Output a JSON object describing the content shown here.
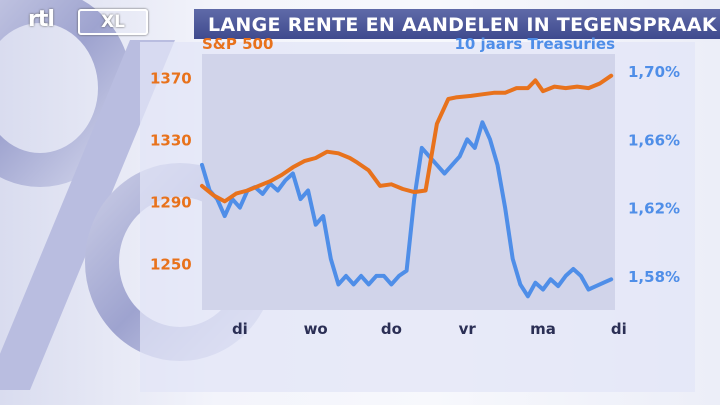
{
  "header": {
    "channel_logo_left": "rtl",
    "channel_logo_right": "XL",
    "title": "LANGE RENTE EN AANDELEN IN TEGENSPRAAK"
  },
  "colors": {
    "sp500": "#e8721c",
    "treasuries": "#4f8ee8",
    "plot_background": "#d1d4ea",
    "title_bar": "#4a5596"
  },
  "chart_data": {
    "type": "line",
    "title": "LANGE RENTE EN AANDELEN IN TEGENSPRAAK",
    "categories": [
      "di",
      "wo",
      "do",
      "vr",
      "ma",
      "di"
    ],
    "grid": false,
    "legend": "top",
    "y_left": {
      "label": "S&P 500",
      "ticks": [
        "1250",
        "1290",
        "1330",
        "1370"
      ],
      "tick_values": [
        1250,
        1290,
        1330,
        1370
      ],
      "range": [
        1220,
        1385
      ]
    },
    "y_right": {
      "label": "10 jaars Treasuries",
      "ticks": [
        "1,58%",
        "1,62%",
        "1,66%",
        "1,70%"
      ],
      "tick_values": [
        1.58,
        1.62,
        1.66,
        1.7
      ],
      "range": [
        1.56,
        1.71
      ]
    },
    "series": [
      {
        "name": "S&P 500",
        "axis": "left",
        "x": [
          0.0,
          0.15,
          0.3,
          0.45,
          0.6,
          0.75,
          0.9,
          1.05,
          1.2,
          1.35,
          1.5,
          1.65,
          1.8,
          1.95,
          2.05,
          2.2,
          2.35,
          2.5,
          2.65,
          2.8,
          2.95,
          3.1,
          3.25,
          3.35,
          3.55,
          3.7,
          3.85,
          4.0,
          4.15,
          4.3,
          4.4,
          4.5,
          4.65,
          4.8,
          4.95,
          5.1,
          5.25,
          5.4
        ],
        "values": [
          1300,
          1294,
          1290,
          1295,
          1297,
          1300,
          1303,
          1307,
          1312,
          1316,
          1318,
          1322,
          1321,
          1318,
          1315,
          1310,
          1300,
          1301,
          1298,
          1296,
          1297,
          1340,
          1356,
          1357,
          1358,
          1359,
          1360,
          1360,
          1363,
          1363,
          1368,
          1361,
          1364,
          1363,
          1364,
          1363,
          1366,
          1371
        ]
      },
      {
        "name": "10 jaars Treasuries",
        "axis": "right",
        "x": [
          0.0,
          0.1,
          0.2,
          0.3,
          0.4,
          0.5,
          0.6,
          0.7,
          0.8,
          0.9,
          1.0,
          1.1,
          1.2,
          1.3,
          1.4,
          1.5,
          1.6,
          1.7,
          1.8,
          1.9,
          2.0,
          2.1,
          2.2,
          2.3,
          2.4,
          2.5,
          2.6,
          2.7,
          2.8,
          2.9,
          3.0,
          3.1,
          3.2,
          3.3,
          3.4,
          3.5,
          3.6,
          3.7,
          3.8,
          3.9,
          4.0,
          4.1,
          4.2,
          4.3,
          4.4,
          4.5,
          4.6,
          4.7,
          4.8,
          4.9,
          5.0,
          5.1,
          5.2,
          5.3,
          5.4
        ],
        "values": [
          1.645,
          1.63,
          1.625,
          1.615,
          1.625,
          1.62,
          1.63,
          1.632,
          1.628,
          1.634,
          1.63,
          1.636,
          1.64,
          1.625,
          1.63,
          1.61,
          1.615,
          1.59,
          1.575,
          1.58,
          1.575,
          1.58,
          1.575,
          1.58,
          1.58,
          1.575,
          1.58,
          1.583,
          1.625,
          1.655,
          1.65,
          1.645,
          1.64,
          1.645,
          1.65,
          1.66,
          1.655,
          1.67,
          1.66,
          1.645,
          1.62,
          1.59,
          1.575,
          1.568,
          1.576,
          1.572,
          1.578,
          1.574,
          1.58,
          1.584,
          1.58,
          1.572,
          1.574,
          1.576,
          1.578
        ]
      }
    ]
  }
}
